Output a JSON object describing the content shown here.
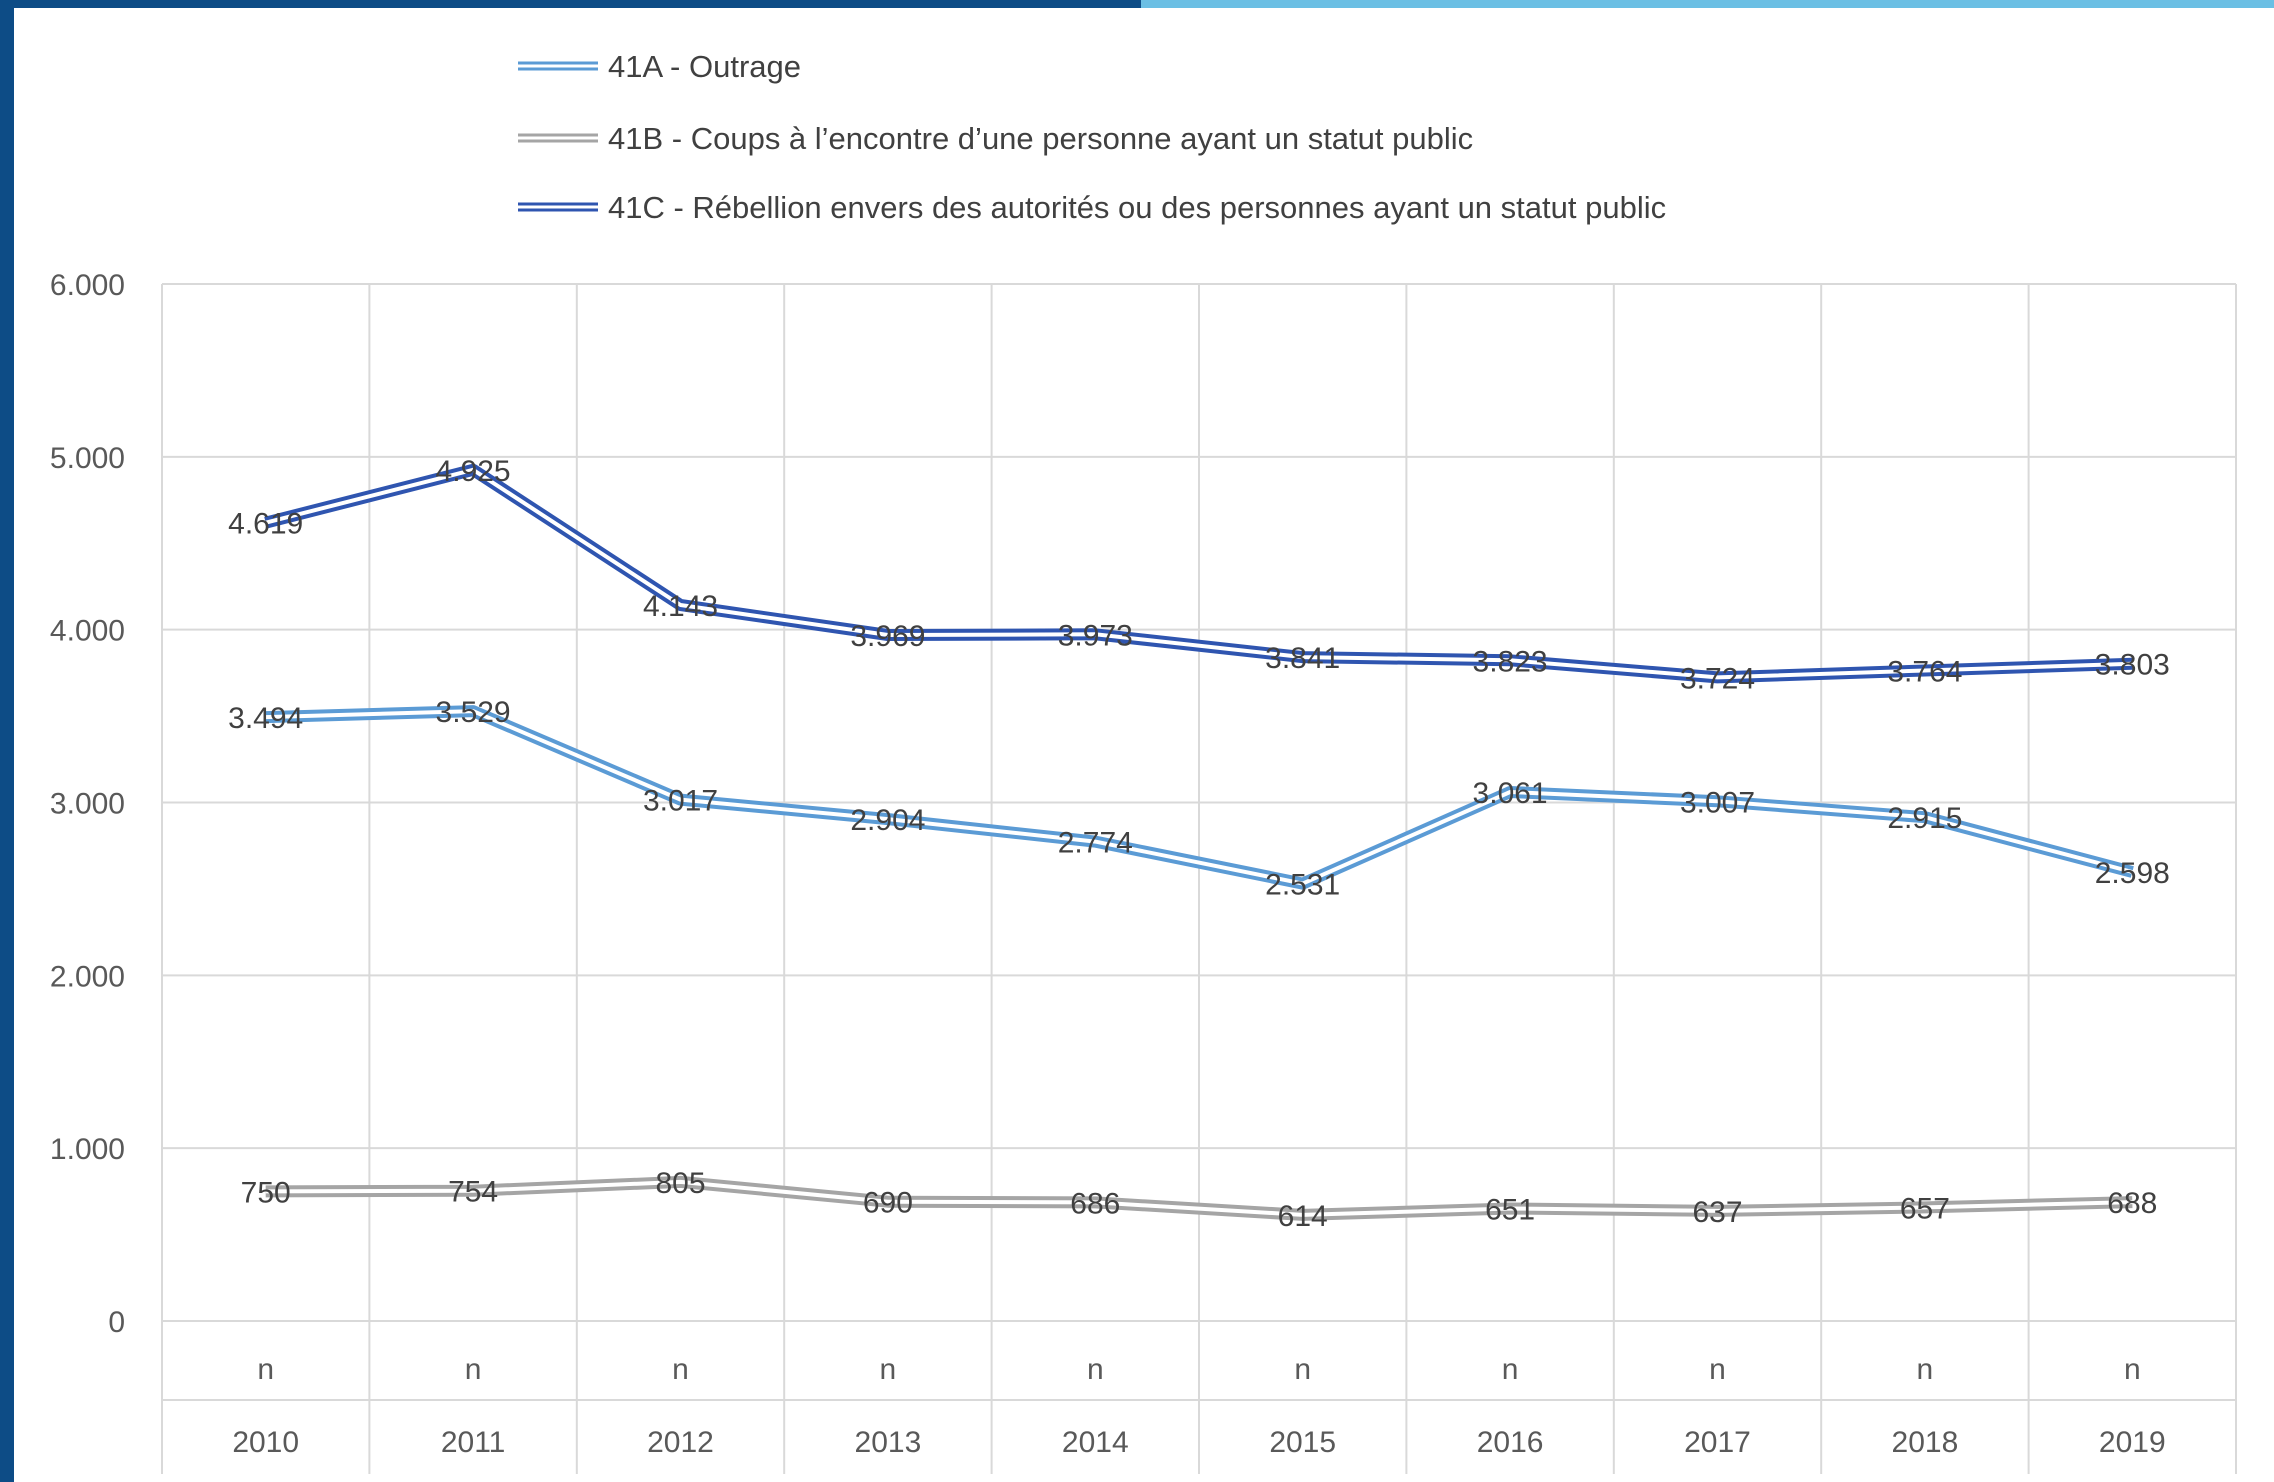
{
  "colors": {
    "frame_dark": "#0d4c86",
    "frame_light": "#6bbfe4",
    "grid": "#d9d9d9",
    "text": "#595959"
  },
  "chart_data": {
    "type": "line",
    "categories": [
      "2010",
      "2011",
      "2012",
      "2013",
      "2014",
      "2015",
      "2016",
      "2017",
      "2018",
      "2019"
    ],
    "category_sublabel": "n",
    "ylim": [
      0,
      6000
    ],
    "yticks": [
      0,
      1000,
      2000,
      3000,
      4000,
      5000,
      6000
    ],
    "ytick_labels": [
      "0",
      "1.000",
      "2.000",
      "3.000",
      "4.000",
      "5.000",
      "6.000"
    ],
    "grid": true,
    "legend_position": "top",
    "series": [
      {
        "name": "41A - Outrage",
        "color": "#5b9bd5",
        "values": [
          3494,
          3529,
          3017,
          2904,
          2774,
          2531,
          3061,
          3007,
          2915,
          2598
        ],
        "labels": [
          "3.494",
          "3.529",
          "3.017",
          "2.904",
          "2.774",
          "2.531",
          "3.061",
          "3.007",
          "2.915",
          "2.598"
        ]
      },
      {
        "name": "41B - Coups à l’encontre d’une personne ayant un statut public",
        "color": "#a5a5a5",
        "values": [
          750,
          754,
          805,
          690,
          686,
          614,
          651,
          637,
          657,
          688
        ],
        "labels": [
          "750",
          "754",
          "805",
          "690",
          "686",
          "614",
          "651",
          "637",
          "657",
          "688"
        ]
      },
      {
        "name": "41C - Rébellion envers des autorités ou des personnes ayant un statut public",
        "color": "#2f55b0",
        "values": [
          4619,
          4925,
          4143,
          3969,
          3973,
          3841,
          3823,
          3724,
          3764,
          3803
        ],
        "labels": [
          "4.619",
          "4.925",
          "4.143",
          "3.969",
          "3.973",
          "3.841",
          "3.823",
          "3.724",
          "3.764",
          "3.803"
        ]
      }
    ]
  }
}
